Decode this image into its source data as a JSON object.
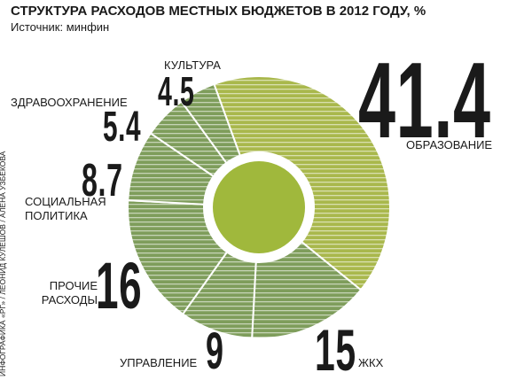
{
  "chart_data": {
    "type": "donut",
    "title": "СТРУКТУРА РАСХОДОВ МЕСТНЫХ БЮДЖЕТОВ В 2012 ГОДУ, %",
    "subtitle": "Источник: минфин",
    "credit": "ИНФОГРАФИКА «РГ» / ЛЕОНИД КУЛЕШОВ / АЛЕНА УЗБЕКОВА",
    "categories": [
      "ОБРАЗОВАНИЕ",
      "ЖКХ",
      "УПРАВЛЕНИЕ",
      "ПРОЧИЕ РАСХОДЫ",
      "СОЦИАЛЬНАЯ ПОЛИТИКА",
      "ЗДРАВООХРАНЕНИЕ",
      "КУЛЬТУРА"
    ],
    "values": [
      41.4,
      15,
      9,
      16,
      8.7,
      5.4,
      4.5
    ],
    "colors": [
      "#a9b84c",
      "#7e9d5b",
      "#7e9d5b",
      "#7e9d5b",
      "#7e9d5b",
      "#7e9d5b",
      "#7e9d5b"
    ],
    "center_color": "#a0b83c"
  }
}
